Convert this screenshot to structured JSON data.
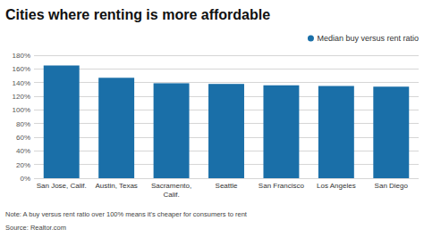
{
  "chart_data": {
    "type": "bar",
    "title": "Cities where renting is more affordable",
    "categories": [
      "San Jose, Calif.",
      "Austin, Texas",
      "Sacramento,\nCalif.",
      "Seattle",
      "San Francisco",
      "Los Angeles",
      "San Diego"
    ],
    "series": [
      {
        "name": "Median buy versus rent ratio",
        "color": "#1a6fa8",
        "values": [
          1.65,
          1.47,
          1.39,
          1.38,
          1.36,
          1.35,
          1.34
        ]
      }
    ],
    "ylim": [
      0,
      1.8
    ],
    "yticks": [
      {
        "value": 0,
        "label": "0%"
      },
      {
        "value": 0.2,
        "label": "20%"
      },
      {
        "value": 0.4,
        "label": "40%"
      },
      {
        "value": 0.6,
        "label": "60%"
      },
      {
        "value": 0.8,
        "label": "80%"
      },
      {
        "value": 1.0,
        "label": "100%"
      },
      {
        "value": 1.2,
        "label": "120%"
      },
      {
        "value": 1.4,
        "label": "140%"
      },
      {
        "value": 1.6,
        "label": "160%"
      },
      {
        "value": 1.8,
        "label": "180%"
      }
    ],
    "grid": true,
    "legend": "upper right",
    "annotations": [
      "Note: A buy versus rent ratio over 100% means it's cheaper for consumers to rent",
      "Source: Realtor.com"
    ]
  }
}
